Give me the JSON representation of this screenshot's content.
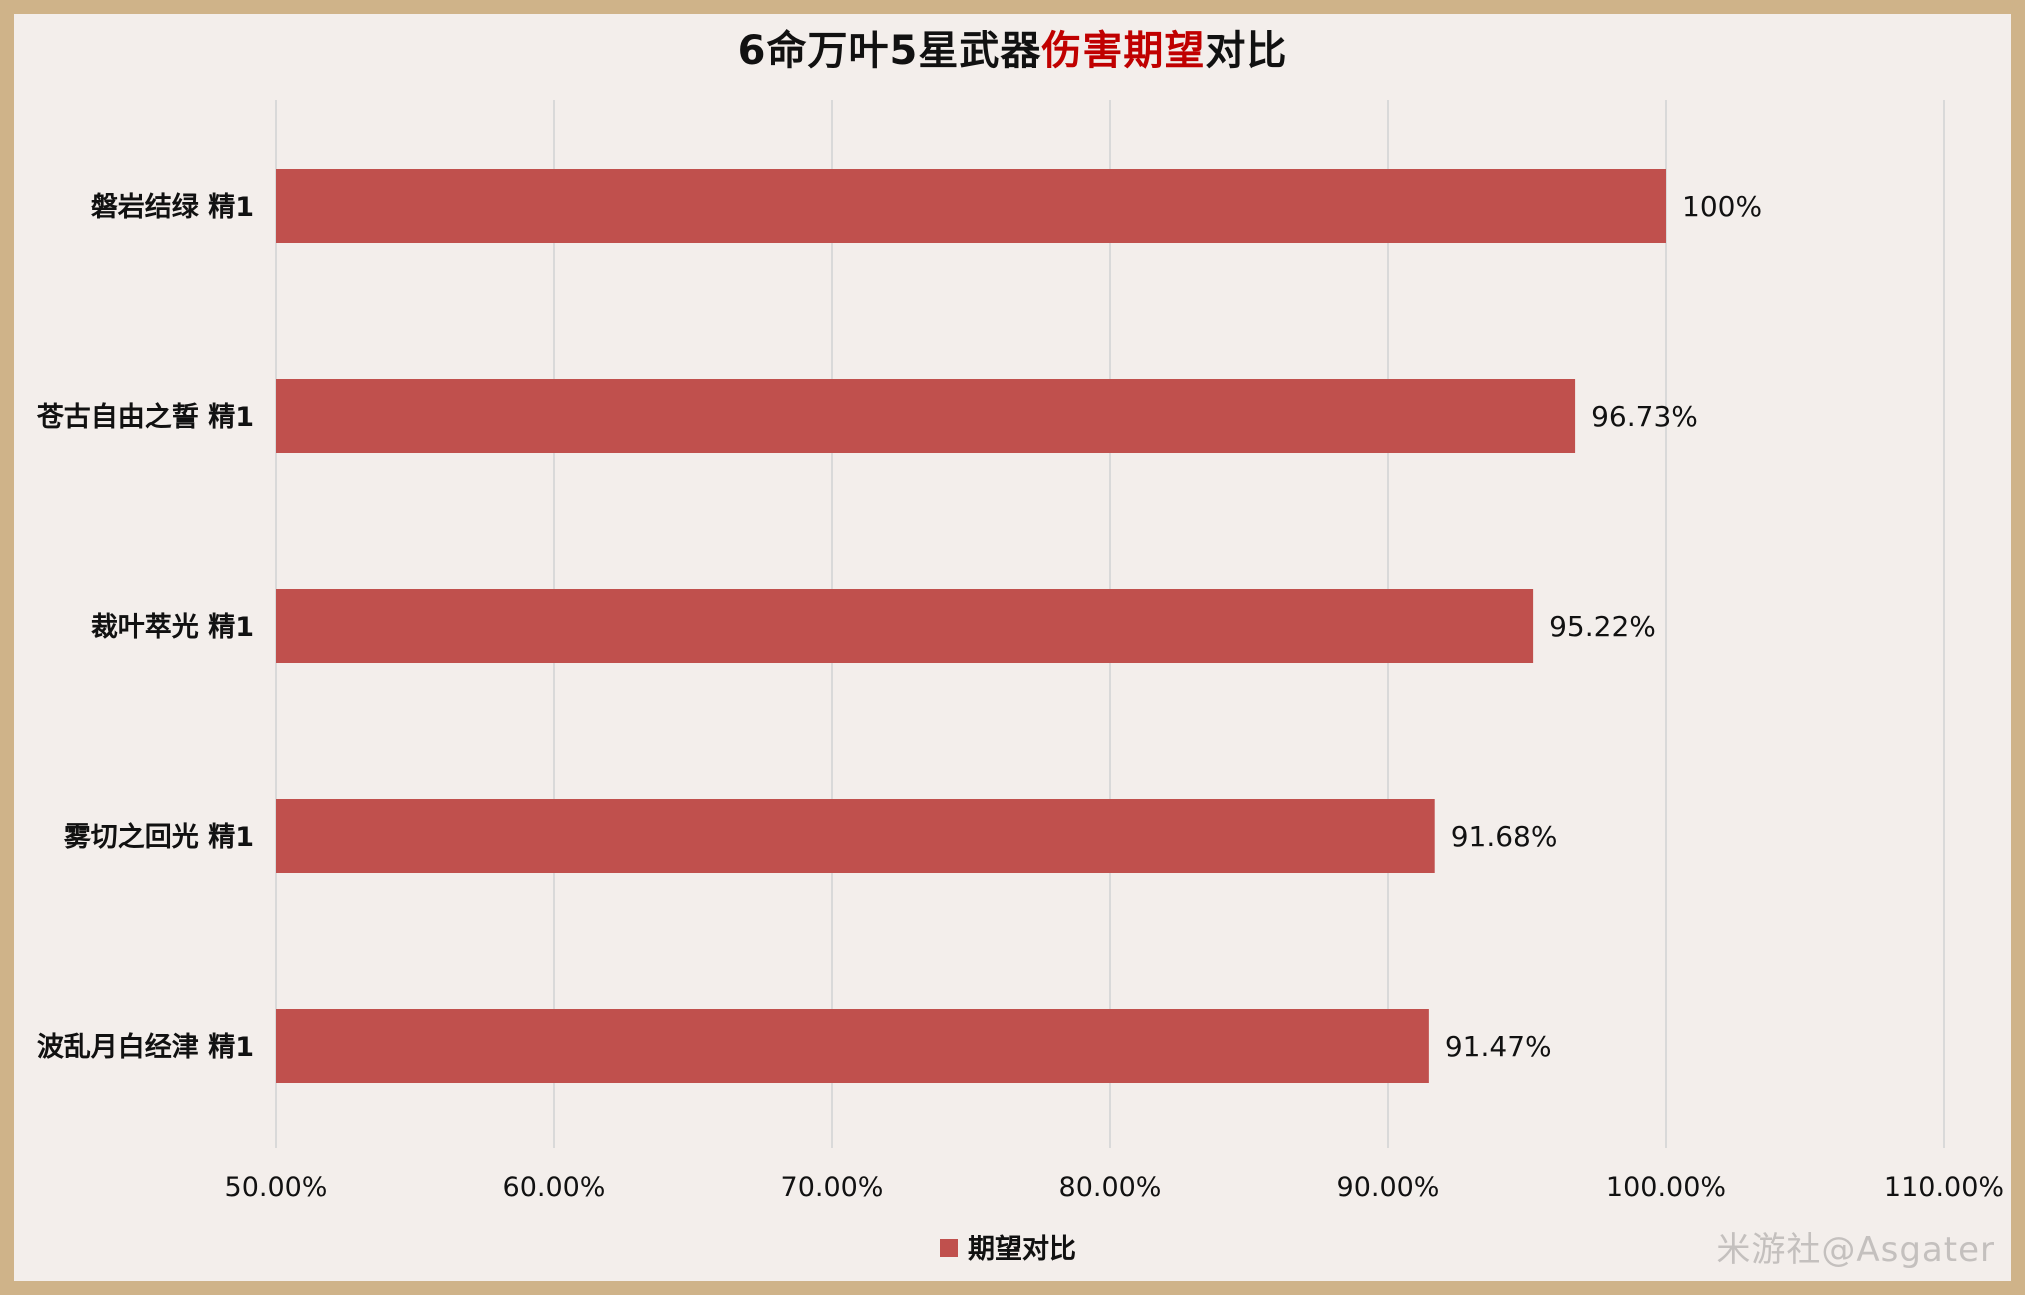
{
  "title": {
    "prefix": "6命万叶5星武器",
    "highlight": "伤害期望",
    "suffix": "对比",
    "highlight_color": "#c00000"
  },
  "chart_data": {
    "type": "bar",
    "orientation": "horizontal",
    "categories": [
      "磐岩结绿 精1",
      "苍古自由之誓 精1",
      "裁叶萃光 精1",
      "雾切之回光 精1",
      "波乱月白经津 精1"
    ],
    "series": [
      {
        "name": "期望对比",
        "values": [
          100,
          96.73,
          95.22,
          91.68,
          91.47
        ],
        "color": "#c0504d"
      }
    ],
    "data_labels": [
      "100%",
      "96.73%",
      "95.22%",
      "91.68%",
      "91.47%"
    ],
    "x_ticks": [
      "50.00%",
      "60.00%",
      "70.00%",
      "80.00%",
      "90.00%",
      "100.00%",
      "110.00%"
    ],
    "xlim": [
      50,
      110
    ],
    "grid": "vertical",
    "legend_position": "bottom"
  },
  "watermark": "米游社@Asgater"
}
